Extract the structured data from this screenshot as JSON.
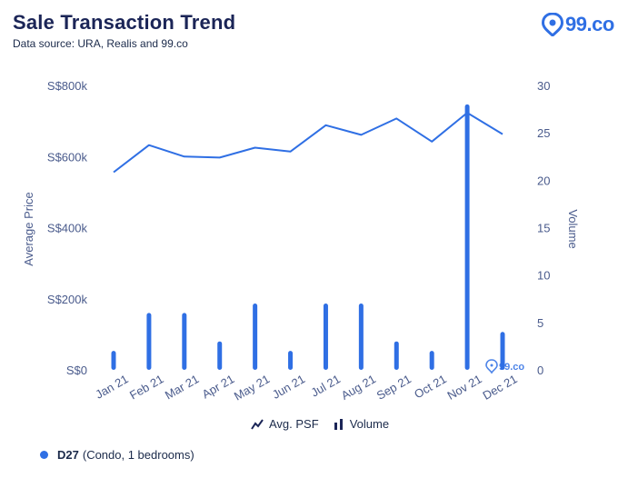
{
  "header": {
    "title": "Sale Transaction Trend",
    "subtitle": "Data source: URA, Realis and 99.co",
    "logo_text": "99.co"
  },
  "legend": {
    "line_label": "Avg. PSF",
    "bar_label": "Volume"
  },
  "footer": {
    "code": "D27",
    "desc": "(Condo, 1 bedrooms)"
  },
  "colors": {
    "primary": "#2f6fe4",
    "axis_text": "#4a5b8c",
    "title": "#1b2557"
  },
  "chart_data": {
    "type": "bar+line",
    "categories": [
      "Jan 21",
      "Feb 21",
      "Mar 21",
      "Apr 21",
      "May 21",
      "Jun 21",
      "Jul 21",
      "Aug 21",
      "Sep 21",
      "Oct 21",
      "Nov 21",
      "Dec 21"
    ],
    "series": [
      {
        "name": "Avg. PSF",
        "type": "line",
        "axis": "left",
        "values": [
          556000,
          632000,
          600000,
          597000,
          625000,
          614000,
          688000,
          661000,
          707000,
          642000,
          723000,
          663000
        ]
      },
      {
        "name": "Volume",
        "type": "bar",
        "axis": "right",
        "values": [
          2,
          6,
          6,
          3,
          7,
          2,
          7,
          7,
          3,
          2,
          28,
          4
        ]
      }
    ],
    "ylabel": "Average Price",
    "y2label": "Volume",
    "ylim": [
      0,
      800000
    ],
    "y2lim": [
      0,
      30
    ],
    "y_ticks": [
      "S$0",
      "S$200k",
      "S$400k",
      "S$600k",
      "S$800k"
    ],
    "y2_ticks": [
      "0",
      "5",
      "10",
      "15",
      "20",
      "25",
      "30"
    ],
    "grid": false,
    "legend": "bottom-center"
  }
}
